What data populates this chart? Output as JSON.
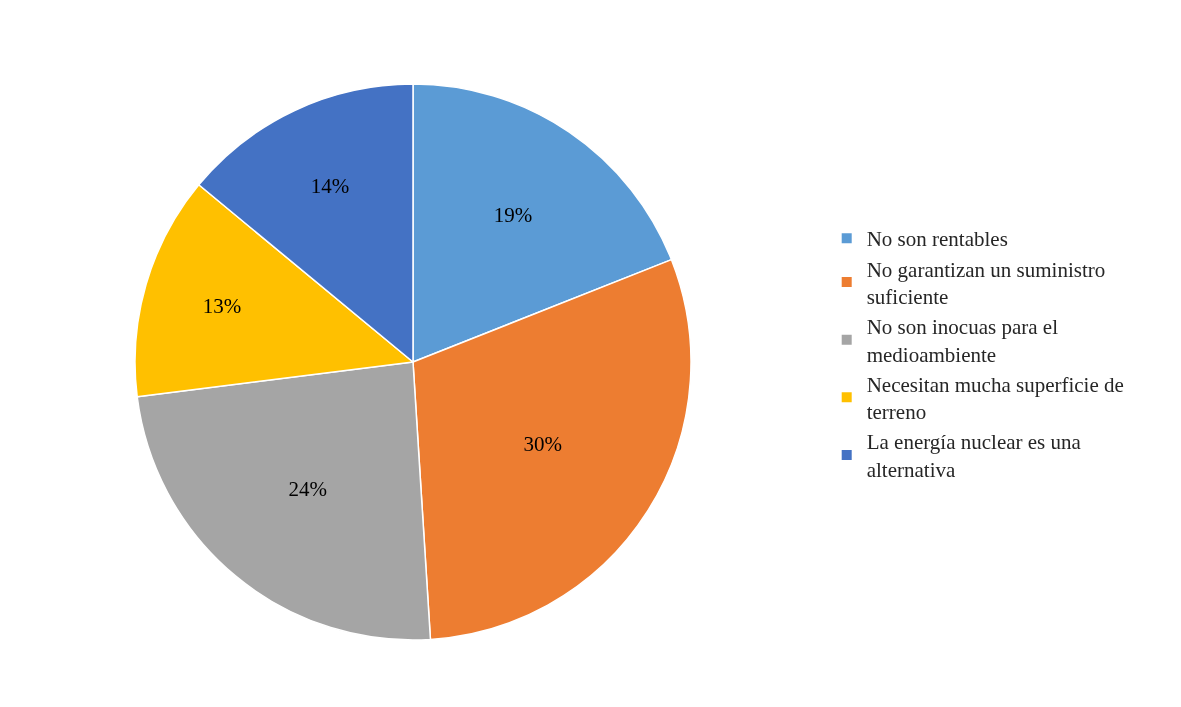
{
  "chart_data": {
    "type": "pie",
    "categories": [
      "No son rentables",
      "No garantizan un suministro suficiente",
      "No son inocuas para el medioambiente",
      "Necesitan mucha superficie de terreno",
      "La energía nuclear es una alternativa"
    ],
    "values": [
      19,
      30,
      24,
      13,
      14
    ],
    "value_labels": [
      "19%",
      "30%",
      "24%",
      "13%",
      "14%"
    ],
    "colors": [
      "#5b9bd5",
      "#ed7d31",
      "#a5a5a5",
      "#ffc000",
      "#4472c4"
    ],
    "legend": "right"
  }
}
